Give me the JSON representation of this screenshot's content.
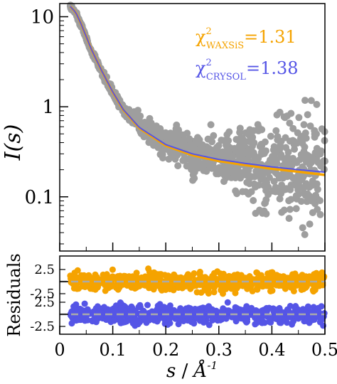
{
  "chart_data": [
    {
      "type": "scatter",
      "panel": "intensity",
      "ylabel": "I(s)",
      "yscale": "log",
      "xlim": [
        0,
        0.5
      ],
      "ylim": [
        0.025,
        14
      ],
      "yticks": [
        {
          "value": 10,
          "label": "10"
        },
        {
          "value": 1,
          "label": "1"
        },
        {
          "value": 0.1,
          "label": "0.1"
        }
      ],
      "points_color": "#9e9e9e",
      "experimental": {
        "x": [
          0.02,
          0.03,
          0.04,
          0.05,
          0.06,
          0.08,
          0.1,
          0.12,
          0.15,
          0.2,
          0.25,
          0.3,
          0.35,
          0.4,
          0.45,
          0.5
        ],
        "y": [
          13.0,
          11.0,
          8.2,
          5.8,
          4.2,
          2.4,
          1.45,
          0.95,
          0.62,
          0.4,
          0.3,
          0.26,
          0.24,
          0.22,
          0.2,
          0.19
        ]
      },
      "series": [
        {
          "color": "#f5a300",
          "x": [
            0.02,
            0.03,
            0.04,
            0.05,
            0.06,
            0.08,
            0.1,
            0.12,
            0.15,
            0.2,
            0.25,
            0.3,
            0.35,
            0.4,
            0.45,
            0.5
          ],
          "y": [
            13.0,
            11.2,
            8.4,
            6.0,
            4.3,
            2.45,
            1.45,
            0.92,
            0.58,
            0.37,
            0.29,
            0.25,
            0.225,
            0.205,
            0.19,
            0.175
          ]
        },
        {
          "color": "#5555e6",
          "x": [
            0.02,
            0.03,
            0.04,
            0.05,
            0.06,
            0.08,
            0.1,
            0.12,
            0.15,
            0.2,
            0.25,
            0.3,
            0.35,
            0.4,
            0.45,
            0.5
          ],
          "y": [
            13.0,
            11.2,
            8.4,
            6.0,
            4.3,
            2.45,
            1.46,
            0.93,
            0.59,
            0.38,
            0.3,
            0.26,
            0.235,
            0.215,
            0.2,
            0.188
          ]
        }
      ],
      "annotations": [
        {
          "symbol": "χ",
          "sup": "2",
          "sub": "WAXSiS",
          "text": "=1.31",
          "color": "#f5a300"
        },
        {
          "symbol": "χ",
          "sup": "2",
          "sub": "CRYSOL",
          "text": "=1.38",
          "color": "#5555e6"
        }
      ]
    },
    {
      "type": "scatter",
      "panel": "residuals",
      "ylabel": "Residuals",
      "xlabel_italic": "s",
      "xlabel_sep": " / ",
      "xlabel_unit": "Å",
      "xlabel_unit_sup": "-1",
      "xlim": [
        0,
        0.5
      ],
      "xticks": [
        {
          "value": 0,
          "label": "0"
        },
        {
          "value": 0.1,
          "label": "0.1"
        },
        {
          "value": 0.2,
          "label": "0.2"
        },
        {
          "value": 0.3,
          "label": "0.3"
        },
        {
          "value": 0.4,
          "label": "0.4"
        },
        {
          "value": 0.5,
          "label": "0.5"
        }
      ],
      "bands": [
        {
          "color": "#f5a300",
          "center_line": 0,
          "ticks": [
            {
              "value": 2.5,
              "label": "2.5"
            },
            {
              "value": -2.5,
              "label": "-2.5"
            }
          ]
        },
        {
          "color": "#5555e6",
          "center_line": 0,
          "ticks": [
            {
              "value": 2.5,
              "label": "2.5"
            },
            {
              "value": -2.5,
              "label": "-2.5"
            }
          ]
        }
      ],
      "zero_line_color": "#aaaaaa"
    }
  ]
}
